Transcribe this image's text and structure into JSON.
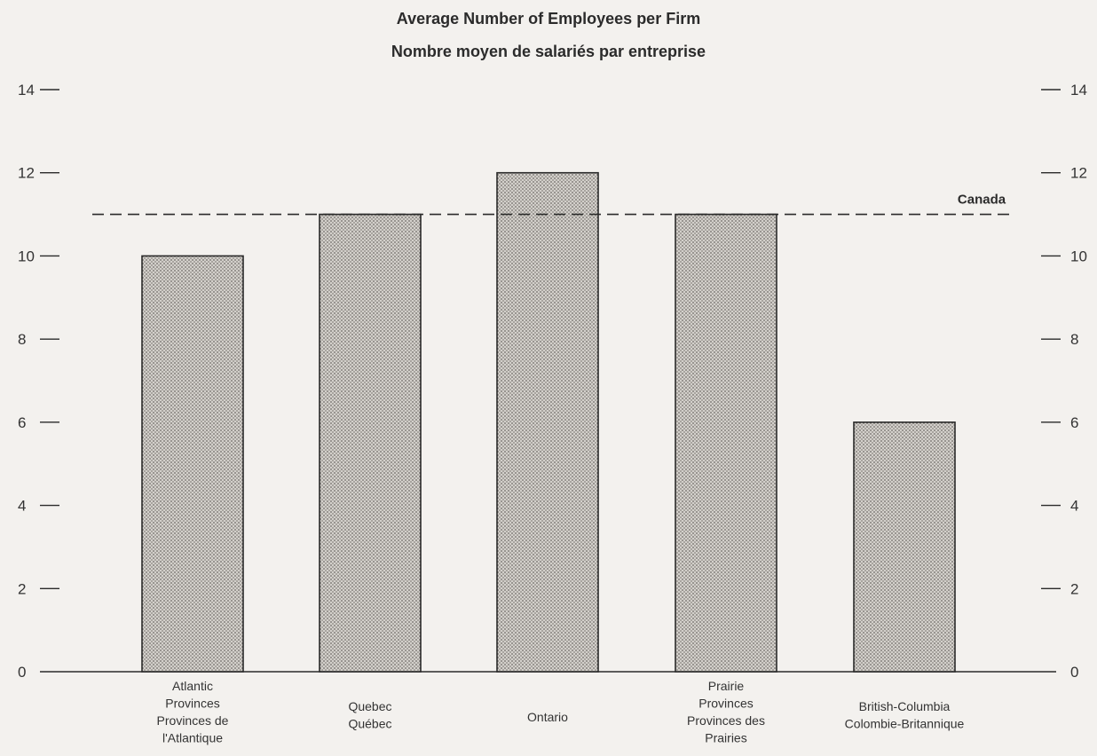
{
  "chart_data": {
    "type": "bar",
    "title": "Average Number of Employees per Firm",
    "subtitle": "Nombre moyen de salariés par entreprise",
    "categories": [
      [
        "Atlantic",
        "Provinces",
        "Provinces de",
        "l'Atlantique"
      ],
      [
        "Quebec",
        "Québec"
      ],
      [
        "Ontario"
      ],
      [
        "Prairie",
        "Provinces",
        "Provinces des",
        "Prairies"
      ],
      [
        "British-Columbia",
        "Colombie-Britannique"
      ]
    ],
    "values": [
      10,
      11,
      12,
      11,
      6
    ],
    "ylim": [
      0,
      14
    ],
    "yticks": [
      "0",
      "2",
      "4",
      "6",
      "8",
      "10",
      "12",
      "14"
    ],
    "reference_line": {
      "label": "Canada",
      "value": 11
    },
    "grid": false,
    "colors": {
      "bar_fill": "#d3d0cb",
      "bar_dots": "#6e6a66",
      "ink": "#2a2a2a"
    }
  }
}
